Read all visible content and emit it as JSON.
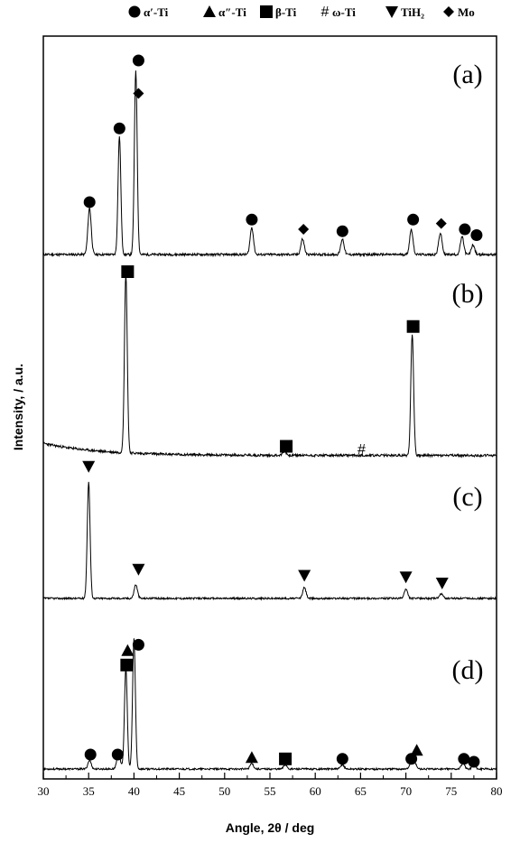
{
  "chart_data": {
    "type": "line",
    "title": "",
    "xlabel": "Angle, 2θ / deg",
    "ylabel": "Intensity, / a.u.",
    "xlim": [
      30,
      80
    ],
    "xticks": [
      30,
      35,
      40,
      45,
      50,
      55,
      60,
      65,
      70,
      75,
      80
    ],
    "grid": false,
    "legend": {
      "position": "top",
      "entries": [
        {
          "marker": "circle",
          "label": "α′-Ti"
        },
        {
          "marker": "triangle-up",
          "label": "α″-Ti"
        },
        {
          "marker": "square",
          "label": "β-Ti"
        },
        {
          "marker": "hash",
          "label": "ω-Ti"
        },
        {
          "marker": "triangle-down",
          "label": "TiH₂"
        },
        {
          "marker": "diamond",
          "label": "Mo"
        }
      ]
    },
    "panels": [
      {
        "label": "(a)",
        "series": [
          {
            "peaks": [
              {
                "x": 35.1,
                "height": 0.24
              },
              {
                "x": 38.4,
                "height": 0.61
              },
              {
                "x": 40.2,
                "height": 0.95
              },
              {
                "x": 53.0,
                "height": 0.14
              },
              {
                "x": 58.6,
                "height": 0.08
              },
              {
                "x": 63.0,
                "height": 0.08
              },
              {
                "x": 70.6,
                "height": 0.13
              },
              {
                "x": 73.8,
                "height": 0.11
              },
              {
                "x": 76.2,
                "height": 0.09
              },
              {
                "x": 77.4,
                "height": 0.05
              }
            ]
          }
        ],
        "markers": [
          {
            "x": 35.1,
            "height": 0.27,
            "symbol": "circle"
          },
          {
            "x": 38.4,
            "height": 0.65,
            "symbol": "circle"
          },
          {
            "x": 40.5,
            "height": 1.0,
            "symbol": "circle"
          },
          {
            "x": 40.5,
            "height": 0.83,
            "symbol": "diamond"
          },
          {
            "x": 53.0,
            "height": 0.18,
            "symbol": "circle"
          },
          {
            "x": 58.7,
            "height": 0.13,
            "symbol": "diamond"
          },
          {
            "x": 63.0,
            "height": 0.12,
            "symbol": "circle"
          },
          {
            "x": 70.8,
            "height": 0.18,
            "symbol": "circle"
          },
          {
            "x": 73.9,
            "height": 0.16,
            "symbol": "diamond"
          },
          {
            "x": 76.5,
            "height": 0.13,
            "symbol": "circle"
          },
          {
            "x": 77.8,
            "height": 0.1,
            "symbol": "circle"
          }
        ]
      },
      {
        "label": "(b)",
        "series": [
          {
            "peaks": [
              {
                "x": 39.1,
                "height": 0.88
              },
              {
                "x": 56.6,
                "height": 0.02
              },
              {
                "x": 70.7,
                "height": 0.6
              }
            ]
          }
        ],
        "markers": [
          {
            "x": 39.3,
            "height": 0.92,
            "symbol": "square"
          },
          {
            "x": 56.8,
            "height": 0.06,
            "symbol": "square"
          },
          {
            "x": 65.1,
            "height": 0.05,
            "symbol": "hash"
          },
          {
            "x": 70.8,
            "height": 0.65,
            "symbol": "square"
          }
        ]
      },
      {
        "label": "(c)",
        "series": [
          {
            "peaks": [
              {
                "x": 35.0,
                "height": 0.76
              },
              {
                "x": 40.2,
                "height": 0.09
              },
              {
                "x": 58.8,
                "height": 0.07
              },
              {
                "x": 70.0,
                "height": 0.06
              },
              {
                "x": 73.9,
                "height": 0.03
              }
            ]
          }
        ],
        "markers": [
          {
            "x": 35.0,
            "height": 0.86,
            "symbol": "triangle-down"
          },
          {
            "x": 40.5,
            "height": 0.19,
            "symbol": "triangle-down"
          },
          {
            "x": 58.8,
            "height": 0.15,
            "symbol": "triangle-down"
          },
          {
            "x": 70.0,
            "height": 0.14,
            "symbol": "triangle-down"
          },
          {
            "x": 74.0,
            "height": 0.1,
            "symbol": "triangle-down"
          }
        ]
      },
      {
        "label": "(d)",
        "series": [
          {
            "peaks": [
              {
                "x": 35.1,
                "height": 0.06
              },
              {
                "x": 38.3,
                "height": 0.12
              },
              {
                "x": 39.1,
                "height": 0.7
              },
              {
                "x": 40.0,
                "height": 0.9
              },
              {
                "x": 53.0,
                "height": 0.04
              },
              {
                "x": 56.7,
                "height": 0.03
              },
              {
                "x": 63.0,
                "height": 0.03
              },
              {
                "x": 70.6,
                "height": 0.05
              },
              {
                "x": 71.0,
                "height": 0.04
              },
              {
                "x": 76.3,
                "height": 0.04
              },
              {
                "x": 77.5,
                "height": 0.03
              }
            ]
          }
        ],
        "markers": [
          {
            "x": 35.2,
            "height": 0.1,
            "symbol": "circle"
          },
          {
            "x": 38.2,
            "height": 0.1,
            "symbol": "circle"
          },
          {
            "x": 39.2,
            "height": 0.72,
            "symbol": "square"
          },
          {
            "x": 39.3,
            "height": 0.82,
            "symbol": "triangle-up"
          },
          {
            "x": 40.5,
            "height": 0.86,
            "symbol": "circle"
          },
          {
            "x": 53.0,
            "height": 0.08,
            "symbol": "triangle-up"
          },
          {
            "x": 56.7,
            "height": 0.07,
            "symbol": "square"
          },
          {
            "x": 63.0,
            "height": 0.07,
            "symbol": "circle"
          },
          {
            "x": 70.6,
            "height": 0.07,
            "symbol": "circle"
          },
          {
            "x": 71.2,
            "height": 0.13,
            "symbol": "triangle-up"
          },
          {
            "x": 76.4,
            "height": 0.07,
            "symbol": "circle"
          },
          {
            "x": 77.5,
            "height": 0.05,
            "symbol": "circle"
          }
        ]
      }
    ]
  }
}
